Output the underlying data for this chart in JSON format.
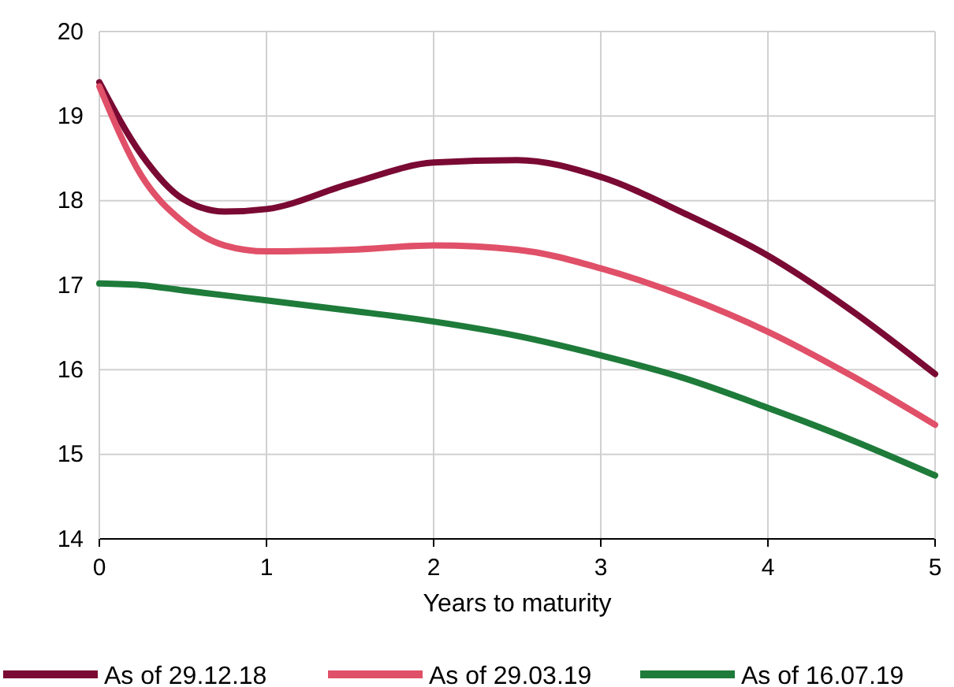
{
  "chart_data": {
    "type": "line",
    "xlabel": "Years to maturity",
    "x": [
      0,
      0.25,
      0.5,
      0.75,
      1,
      1.5,
      2,
      2.5,
      3,
      3.5,
      4,
      4.5,
      5
    ],
    "series": [
      {
        "name": "As of 29.12.18",
        "color": "#7a0a33",
        "values": [
          19.4,
          18.55,
          18.02,
          17.87,
          17.9,
          18.2,
          18.45,
          18.48,
          18.28,
          17.85,
          17.35,
          16.7,
          15.95
        ]
      },
      {
        "name": "As of 29.03.19",
        "color": "#e05068",
        "values": [
          19.35,
          18.3,
          17.75,
          17.47,
          17.4,
          17.42,
          17.47,
          17.42,
          17.2,
          16.87,
          16.45,
          15.93,
          15.35
        ]
      },
      {
        "name": "As of 16.07.19",
        "color": "#1e7b3a",
        "values": [
          17.02,
          17.0,
          16.94,
          16.88,
          16.82,
          16.7,
          16.57,
          16.4,
          16.17,
          15.9,
          15.55,
          15.17,
          14.75
        ]
      }
    ],
    "xlim": [
      0,
      5
    ],
    "xticks": [
      0,
      1,
      2,
      3,
      4,
      5
    ],
    "ylim": [
      14,
      20
    ],
    "yticks": [
      14,
      15,
      16,
      17,
      18,
      19,
      20
    ],
    "grid": true,
    "legend": "bottom",
    "marker": "none",
    "line_style": "solid"
  }
}
